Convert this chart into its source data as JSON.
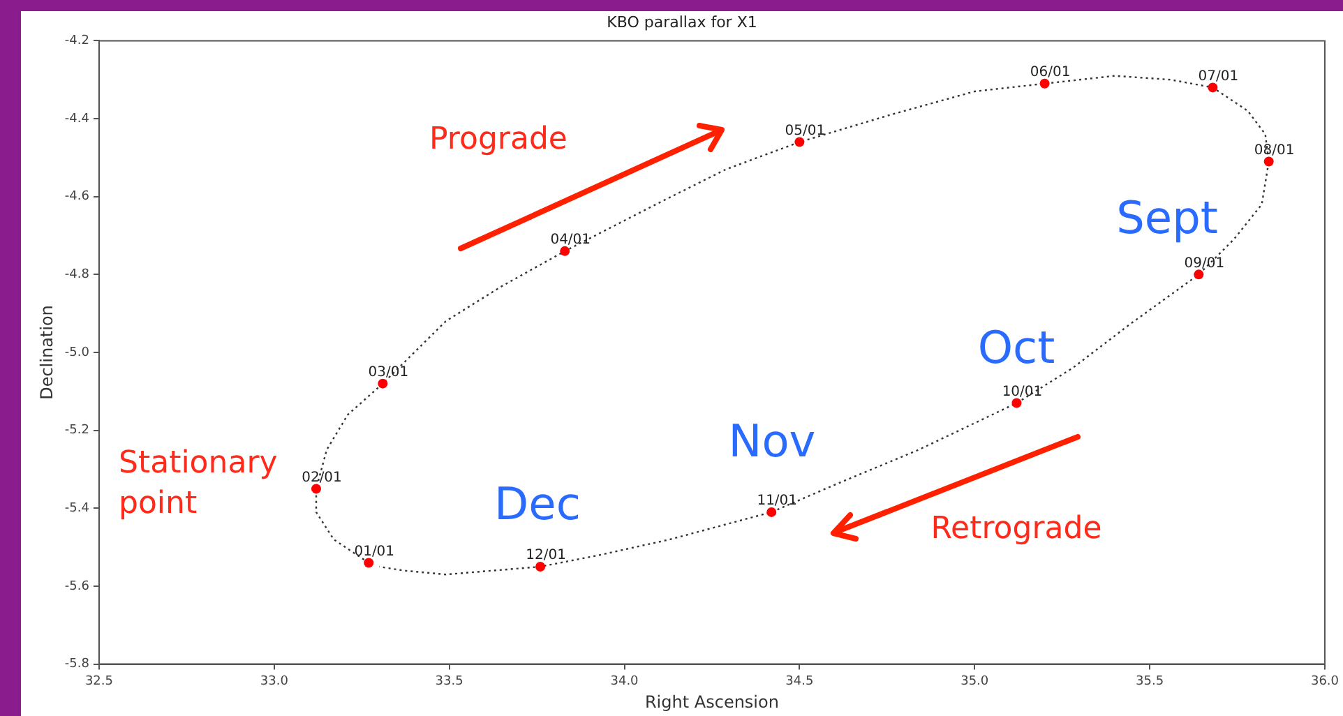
{
  "chart_data": {
    "type": "line",
    "title": "KBO parallax for X1",
    "xlabel": "Right Ascension",
    "ylabel": "Declination",
    "xlim": [
      32.5,
      36.0
    ],
    "xticks": [
      32.5,
      {
        "value": 33,
        "label": "33.0"
      },
      33.5,
      {
        "value": 34,
        "label": "34.0"
      },
      34.5,
      {
        "value": 35,
        "label": "35.0"
      },
      35.5,
      {
        "value": 36,
        "label": "36.0"
      }
    ],
    "ylim": [
      -5.8,
      -4.2
    ],
    "yticks": [
      -5.8,
      -5.6,
      -5.4,
      -5.2,
      {
        "value": -5,
        "label": "-5.0"
      },
      -4.8,
      -4.6,
      -4.4,
      -4.2
    ],
    "grid": false,
    "legend": false,
    "series": [
      {
        "type": "line",
        "color": "#333333",
        "line_style": "dotted",
        "marker": "none",
        "x": [
          33.27,
          33.17,
          33.12,
          33.12,
          33.15,
          33.21,
          33.31,
          33.49,
          33.65,
          33.83,
          34.09,
          34.29,
          34.5,
          34.76,
          35.0,
          35.2,
          35.4,
          35.56,
          35.68,
          35.78,
          35.83,
          35.84,
          35.82,
          35.74,
          35.64,
          35.44,
          35.28,
          35.12,
          34.84,
          34.6,
          34.42,
          34.13,
          33.93,
          33.76,
          33.49,
          33.37,
          33.3
        ],
        "values": [
          -5.54,
          -5.48,
          -5.41,
          -5.35,
          -5.25,
          -5.16,
          -5.08,
          -4.92,
          -4.83,
          -4.74,
          -4.62,
          -4.53,
          -4.46,
          -4.39,
          -4.33,
          -4.31,
          -4.29,
          -4.3,
          -4.32,
          -4.38,
          -4.44,
          -4.51,
          -4.62,
          -4.71,
          -4.8,
          -4.93,
          -5.04,
          -5.13,
          -5.25,
          -5.34,
          -5.41,
          -5.48,
          -5.52,
          -5.55,
          -5.57,
          -5.56,
          -5.55
        ]
      },
      {
        "type": "scatter",
        "color": "#ff0000",
        "marker": "circle",
        "x": [
          33.27,
          33.12,
          33.31,
          33.83,
          34.5,
          35.2,
          35.68,
          35.84,
          35.64,
          35.12,
          34.42,
          33.76
        ],
        "values": [
          -5.54,
          -5.35,
          -5.08,
          -4.74,
          -4.46,
          -4.31,
          -4.32,
          -4.51,
          -4.8,
          -5.13,
          -5.41,
          -5.55
        ],
        "value_labels": [
          "01/01",
          "02/01",
          "03/01",
          "04/01",
          "05/01",
          "06/01",
          "07/01",
          "08/01",
          "09/01",
          "10/01",
          "11/01",
          "12/01"
        ]
      }
    ],
    "annotations": [
      "Prograde",
      "Retrograde",
      "Stationary point",
      "Sept",
      "Oct",
      "Nov",
      "Dec"
    ]
  }
}
